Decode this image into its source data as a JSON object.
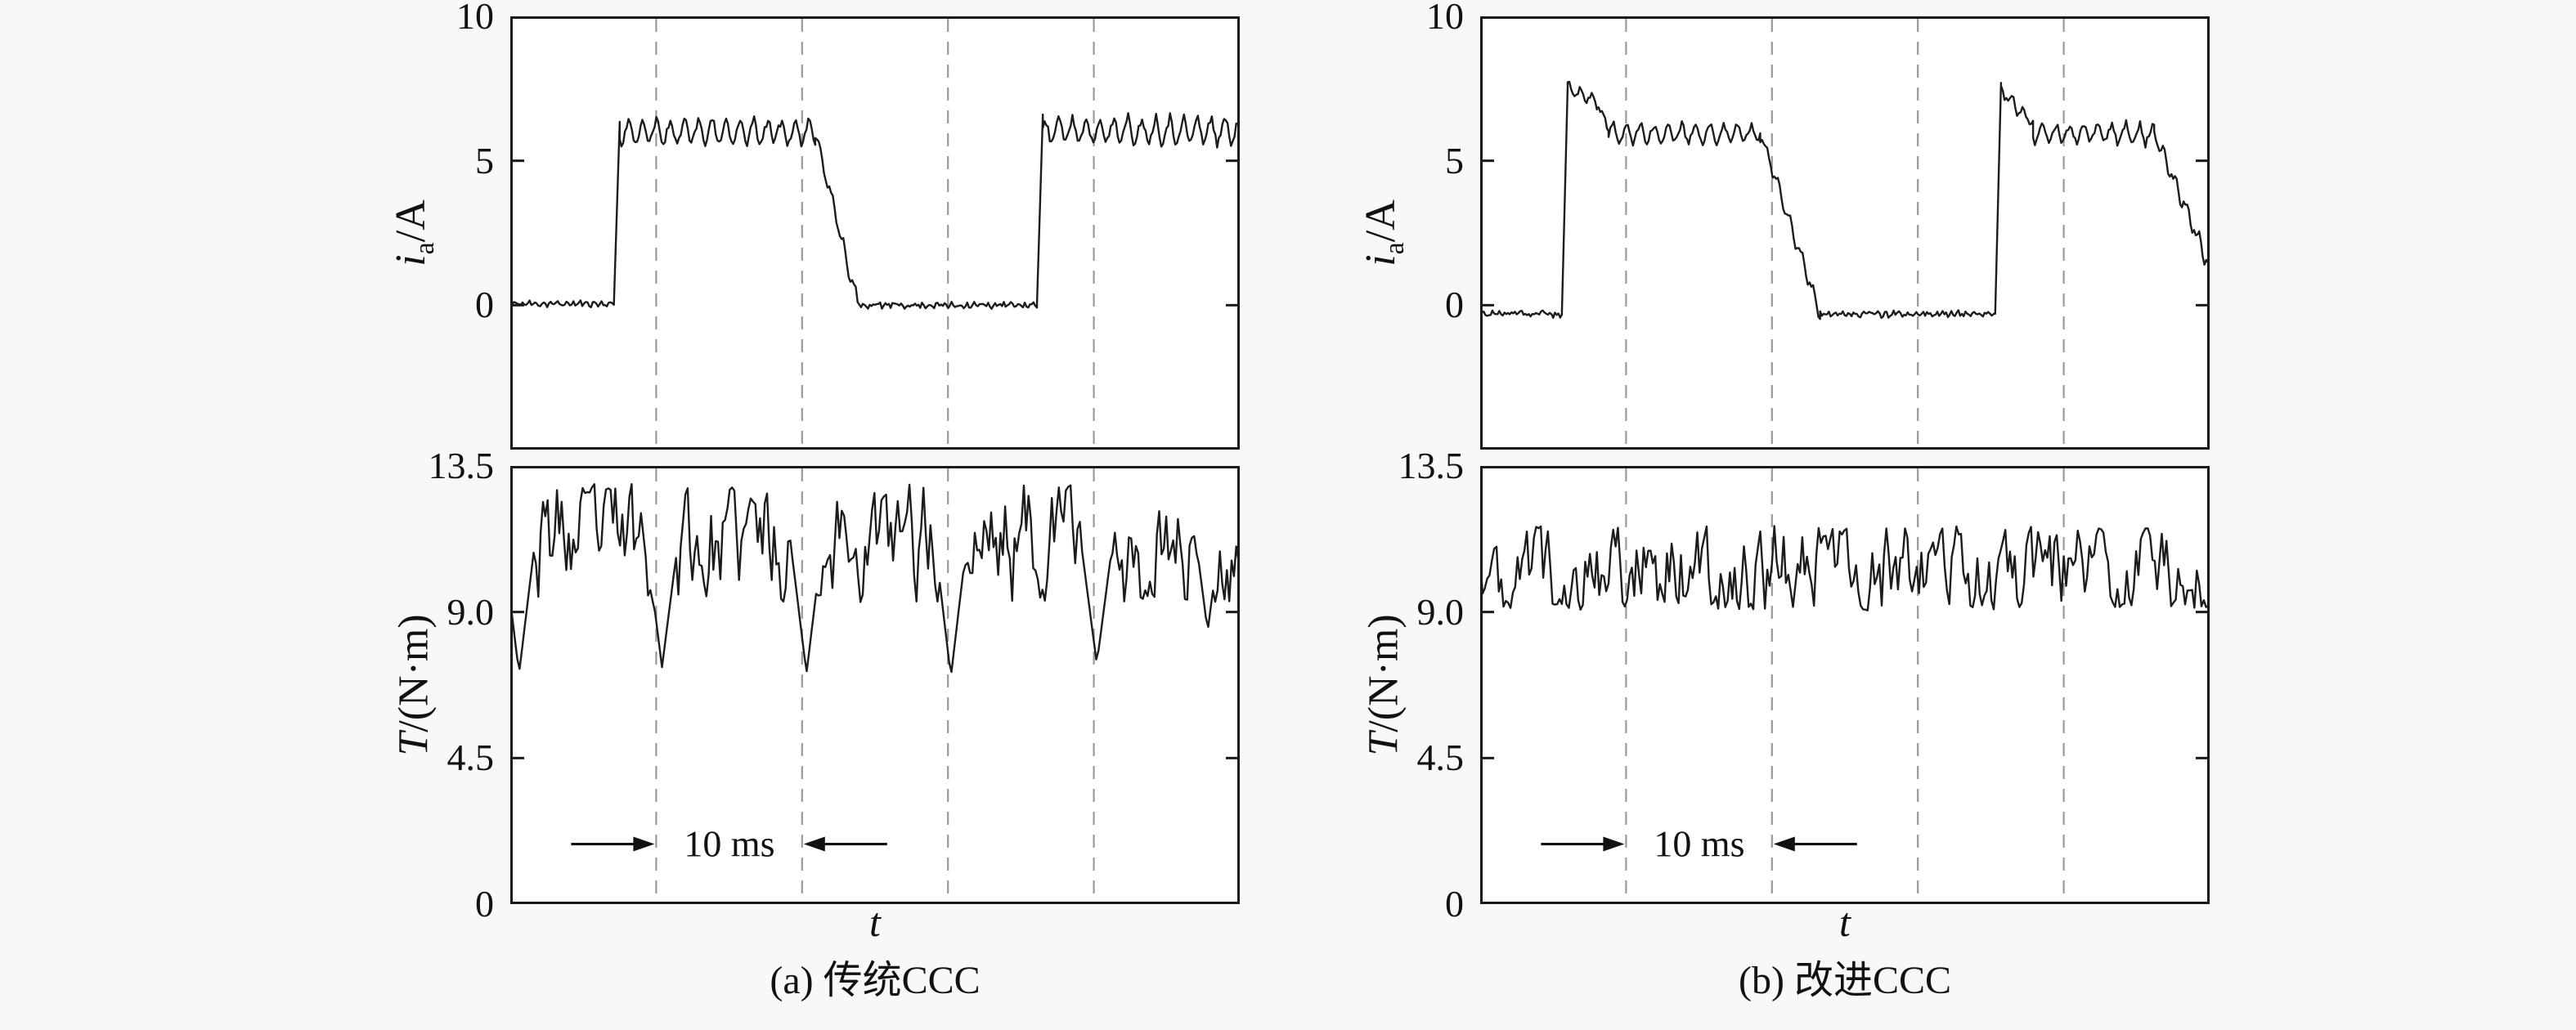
{
  "figure": {
    "background": "#f8f8f8",
    "frame_color": "#1a1a1a",
    "grid_color": "#999999",
    "trace_color": "#1c1c1c"
  },
  "chart_data": [
    {
      "id": "a",
      "type": "line",
      "caption": "(a) 传统CCC",
      "annotation": {
        "text": "10 ms",
        "span_ms": [
          10,
          20
        ],
        "y_value": 1.85
      },
      "x_axis": {
        "label": "t",
        "range_ms": [
          0,
          50
        ],
        "gridlines_ms": [
          10,
          20,
          30,
          40
        ],
        "grid_style": "dashed"
      },
      "current_plot": {
        "ylabel": {
          "symbol": "i",
          "subscript": "a",
          "unit": "/A"
        },
        "ylim": [
          -5,
          10
        ],
        "yticks": [
          {
            "value": 0,
            "label": "0"
          },
          {
            "value": 5,
            "label": "5"
          },
          {
            "value": 10,
            "label": "10"
          }
        ],
        "seed": 11,
        "segments": [
          {
            "type": "flat",
            "t0": 0,
            "t1": 7.1,
            "level": 0.05,
            "ripple": 0.07,
            "period": 0.5,
            "jitter": 0.08
          },
          {
            "type": "ramp",
            "t0": 7.1,
            "t1": 7.5,
            "v0": 0.05,
            "v1": 6.35
          },
          {
            "type": "flat",
            "t0": 7.5,
            "t1": 20.9,
            "level": 6.0,
            "ripple": 0.5,
            "period": 0.95,
            "jitter": 0.14
          },
          {
            "type": "ramp",
            "t0": 20.9,
            "t1": 23.8,
            "v0": 6.0,
            "v1": 0.05,
            "ripple": 0.3,
            "period": 0.8,
            "jitter": 0.1
          },
          {
            "type": "flat",
            "t0": 23.8,
            "t1": 36.1,
            "level": 0.0,
            "ripple": 0.07,
            "period": 0.5,
            "jitter": 0.08
          },
          {
            "type": "ramp",
            "t0": 36.1,
            "t1": 36.5,
            "v0": 0.0,
            "v1": 6.6
          },
          {
            "type": "flat",
            "t0": 36.5,
            "t1": 50,
            "level": 6.05,
            "ripple": 0.5,
            "period": 0.95,
            "jitter": 0.14
          }
        ]
      },
      "torque_plot": {
        "ylabel": {
          "symbol": "T",
          "subscript": "",
          "unit": "/(N·m)"
        },
        "ylim": [
          0,
          13.5
        ],
        "yticks": [
          {
            "value": 0,
            "label": "0"
          },
          {
            "value": 4.5,
            "label": "4.5"
          },
          {
            "value": 9,
            "label": "9.0"
          },
          {
            "value": 13.5,
            "label": "13.5"
          }
        ],
        "seed": 23,
        "band": {
          "mean": 11.2,
          "low": 9.3,
          "high": 12.95,
          "step": 1.5,
          "dt": 0.16
        },
        "dips": [
          {
            "t": 0.6,
            "width": 1.1,
            "depth": 7.1
          },
          {
            "t": 10.4,
            "width": 1.1,
            "depth": 7.3
          },
          {
            "t": 20.3,
            "width": 1.1,
            "depth": 7.1
          },
          {
            "t": 30.2,
            "width": 1.1,
            "depth": 7.0
          },
          {
            "t": 40.2,
            "width": 1.1,
            "depth": 7.4
          },
          {
            "t": 47.8,
            "width": 0.8,
            "depth": 8.4
          }
        ]
      }
    },
    {
      "id": "b",
      "type": "line",
      "caption": "(b) 改进CCC",
      "annotation": {
        "text": "10 ms",
        "span_ms": [
          10,
          20
        ],
        "y_value": 1.85
      },
      "x_axis": {
        "label": "t",
        "range_ms": [
          0,
          50
        ],
        "gridlines_ms": [
          10,
          20,
          30,
          40
        ],
        "grid_style": "dashed"
      },
      "current_plot": {
        "ylabel": {
          "symbol": "i",
          "subscript": "a",
          "unit": "/A"
        },
        "ylim": [
          -5,
          10
        ],
        "yticks": [
          {
            "value": 0,
            "label": "0"
          },
          {
            "value": 5,
            "label": "5"
          },
          {
            "value": 10,
            "label": "10"
          }
        ],
        "seed": 31,
        "segments": [
          {
            "type": "flat",
            "t0": 0,
            "t1": 5.6,
            "level": -0.3,
            "ripple": 0.07,
            "period": 0.5,
            "jitter": 0.08
          },
          {
            "type": "ramp",
            "t0": 5.6,
            "t1": 6.0,
            "v0": -0.3,
            "v1": 7.6
          },
          {
            "type": "ramp",
            "t0": 6.0,
            "t1": 8.0,
            "v0": 7.5,
            "v1": 7.0,
            "ripple": 0.22,
            "period": 0.8,
            "jitter": 0.1
          },
          {
            "type": "ramp",
            "t0": 8.0,
            "t1": 8.8,
            "v0": 7.0,
            "v1": 6.1,
            "ripple": 0.15,
            "period": 0.8,
            "jitter": 0.08
          },
          {
            "type": "flat",
            "t0": 8.8,
            "t1": 19.2,
            "level": 5.95,
            "ripple": 0.38,
            "period": 0.95,
            "jitter": 0.12
          },
          {
            "type": "ramp",
            "t0": 19.2,
            "t1": 23.3,
            "v0": 6.0,
            "v1": -0.3,
            "ripple": 0.28,
            "period": 0.8,
            "jitter": 0.1
          },
          {
            "type": "flat",
            "t0": 23.3,
            "t1": 35.3,
            "level": -0.3,
            "ripple": 0.07,
            "period": 0.5,
            "jitter": 0.08
          },
          {
            "type": "ramp",
            "t0": 35.3,
            "t1": 35.7,
            "v0": -0.3,
            "v1": 7.7
          },
          {
            "type": "ramp",
            "t0": 35.7,
            "t1": 37.9,
            "v0": 7.45,
            "v1": 6.3,
            "ripple": 0.22,
            "period": 0.8,
            "jitter": 0.1
          },
          {
            "type": "flat",
            "t0": 37.9,
            "t1": 46.2,
            "level": 5.95,
            "ripple": 0.38,
            "period": 0.95,
            "jitter": 0.12
          },
          {
            "type": "ramp",
            "t0": 46.2,
            "t1": 50,
            "v0": 6.0,
            "v1": 1.3,
            "ripple": 0.3,
            "period": 0.8,
            "jitter": 0.12
          }
        ]
      },
      "torque_plot": {
        "ylabel": {
          "symbol": "T",
          "subscript": "",
          "unit": "/(N·m)"
        },
        "ylim": [
          0,
          13.5
        ],
        "yticks": [
          {
            "value": 0,
            "label": "0"
          },
          {
            "value": 4.5,
            "label": "4.5"
          },
          {
            "value": 9,
            "label": "9.0"
          },
          {
            "value": 13.5,
            "label": "13.5"
          }
        ],
        "seed": 47,
        "band": {
          "mean": 10.35,
          "low": 9.05,
          "high": 11.65,
          "step": 1.25,
          "dt": 0.16
        },
        "dips": []
      }
    }
  ]
}
